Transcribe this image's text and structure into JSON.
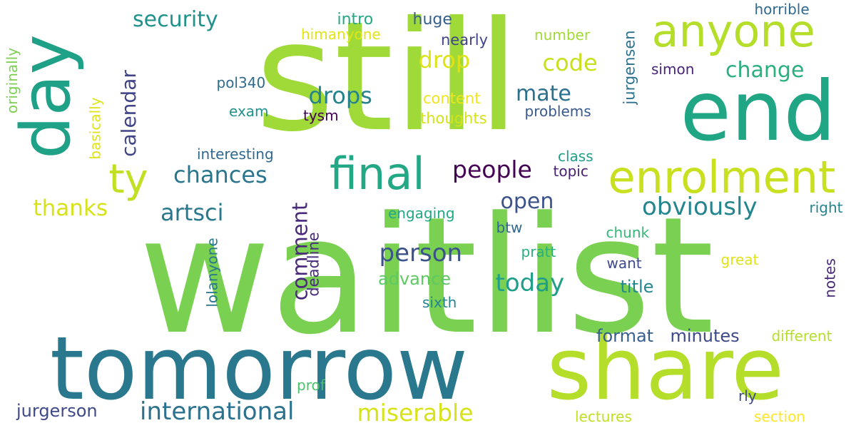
{
  "words": [
    {
      "text": "waitlist",
      "color": "#7ad151",
      "rotate": 0
    },
    {
      "text": "still",
      "color": "#a0da39",
      "rotate": 0
    },
    {
      "text": "tomorrow",
      "color": "#2a788e",
      "rotate": 0
    },
    {
      "text": "share",
      "color": "#b5de2b",
      "rotate": 0
    },
    {
      "text": "end",
      "color": "#21a685",
      "rotate": 0
    },
    {
      "text": "day",
      "color": "#1fa187",
      "rotate": -90
    },
    {
      "text": "enrolment",
      "color": "#c8e020",
      "rotate": 0
    },
    {
      "text": "anyone",
      "color": "#b5de2b",
      "rotate": 0
    },
    {
      "text": "final",
      "color": "#22a884",
      "rotate": 0
    },
    {
      "text": "ty",
      "color": "#c2df23",
      "rotate": 0
    },
    {
      "text": "international",
      "color": "#2c728e",
      "rotate": 0
    },
    {
      "text": "miserable",
      "color": "#d8e219",
      "rotate": 0
    },
    {
      "text": "person",
      "color": "#3b528b",
      "rotate": 0
    },
    {
      "text": "today",
      "color": "#1f9e89",
      "rotate": 0
    },
    {
      "text": "obviously",
      "color": "#25858e",
      "rotate": 0
    },
    {
      "text": "people",
      "color": "#440154",
      "rotate": 0
    },
    {
      "text": "chances",
      "color": "#2a768e",
      "rotate": 0
    },
    {
      "text": "artsci",
      "color": "#2a788e",
      "rotate": 0
    },
    {
      "text": "thanks",
      "color": "#d8e219",
      "rotate": 0
    },
    {
      "text": "drops",
      "color": "#25838e",
      "rotate": 0
    },
    {
      "text": "drop",
      "color": "#dde318",
      "rotate": 0
    },
    {
      "text": "code",
      "color": "#c8e020",
      "rotate": 0
    },
    {
      "text": "change",
      "color": "#2ab07f",
      "rotate": 0
    },
    {
      "text": "mate",
      "color": "#2d708e",
      "rotate": 0
    },
    {
      "text": "security",
      "color": "#20928c",
      "rotate": 0
    },
    {
      "text": "calendar",
      "color": "#414487",
      "rotate": -90
    },
    {
      "text": "comment",
      "color": "#482878",
      "rotate": -90
    },
    {
      "text": "open",
      "color": "#3b528b",
      "rotate": 0
    },
    {
      "text": "jurgerson",
      "color": "#3e4a89",
      "rotate": 0
    },
    {
      "text": "format",
      "color": "#355f8d",
      "rotate": 0
    },
    {
      "text": "minutes",
      "color": "#3e4989",
      "rotate": 0
    },
    {
      "text": "advance",
      "color": "#5ec962",
      "rotate": 0
    },
    {
      "text": "title",
      "color": "#23888e",
      "rotate": 0
    },
    {
      "text": "jurgensen",
      "color": "#2c728e",
      "rotate": -90
    },
    {
      "text": "deadline",
      "color": "#472d7b",
      "rotate": -90
    },
    {
      "text": "intro",
      "color": "#22a884",
      "rotate": 0
    },
    {
      "text": "huge",
      "color": "#355f8d",
      "rotate": 0
    },
    {
      "text": "nearly",
      "color": "#414487",
      "rotate": 0
    },
    {
      "text": "himanyone",
      "color": "#e2e418",
      "rotate": 0
    },
    {
      "text": "number",
      "color": "#a2da37",
      "rotate": 0
    },
    {
      "text": "horrible",
      "color": "#31688e",
      "rotate": 0
    },
    {
      "text": "simon",
      "color": "#482475",
      "rotate": 0
    },
    {
      "text": "pol340",
      "color": "#2f6c8e",
      "rotate": 0
    },
    {
      "text": "content",
      "color": "#f1e51d",
      "rotate": 0
    },
    {
      "text": "thoughts",
      "color": "#d5e21a",
      "rotate": 0
    },
    {
      "text": "problems",
      "color": "#38598c",
      "rotate": 0
    },
    {
      "text": "exam",
      "color": "#21918c",
      "rotate": 0
    },
    {
      "text": "tysm",
      "color": "#440154",
      "rotate": 0
    },
    {
      "text": "interesting",
      "color": "#31688e",
      "rotate": 0
    },
    {
      "text": "class",
      "color": "#1f9e89",
      "rotate": 0
    },
    {
      "text": "topic",
      "color": "#482173",
      "rotate": 0
    },
    {
      "text": "originally",
      "color": "#7ad151",
      "rotate": -90
    },
    {
      "text": "basically",
      "color": "#dde318",
      "rotate": -90
    },
    {
      "text": "right",
      "color": "#25838e",
      "rotate": 0
    },
    {
      "text": "engaging",
      "color": "#22a884",
      "rotate": 0
    },
    {
      "text": "chunk",
      "color": "#35b779",
      "rotate": 0
    },
    {
      "text": "btw",
      "color": "#31688e",
      "rotate": 0
    },
    {
      "text": "pratt",
      "color": "#2ab07f",
      "rotate": 0
    },
    {
      "text": "want",
      "color": "#3e4a89",
      "rotate": 0
    },
    {
      "text": "great",
      "color": "#dfe318",
      "rotate": 0
    },
    {
      "text": "notes",
      "color": "#482878",
      "rotate": -90
    },
    {
      "text": "lolanyone",
      "color": "#2a788e",
      "rotate": -90
    },
    {
      "text": "sixth",
      "color": "#25858e",
      "rotate": 0
    },
    {
      "text": "different",
      "color": "#b5de2b",
      "rotate": 0
    },
    {
      "text": "prof",
      "color": "#4ac16d",
      "rotate": 0
    },
    {
      "text": "rly",
      "color": "#3e4a89",
      "rotate": 0
    },
    {
      "text": "lectures",
      "color": "#c2df23",
      "rotate": 0
    },
    {
      "text": "section",
      "color": "#fde725",
      "rotate": 0
    }
  ]
}
